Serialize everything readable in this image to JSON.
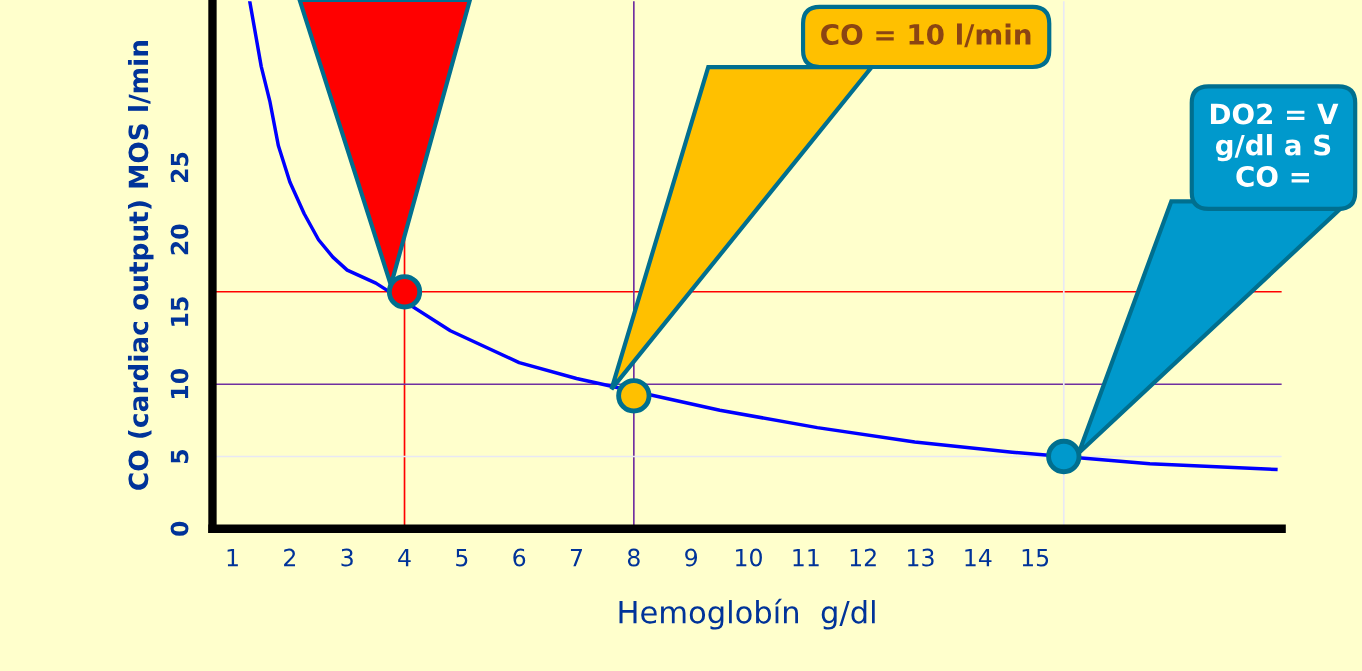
{
  "chart_data": {
    "type": "line",
    "xlabel": "Hemoglobín  g/dl",
    "ylabel": "CO (cardiac output) MOS l/min",
    "xlim": [
      0.65,
      19.3
    ],
    "ylim": [
      0,
      36.5
    ],
    "xticks": [
      1,
      2,
      3,
      4,
      5,
      6,
      7,
      8,
      9,
      10,
      11,
      12,
      13,
      14,
      15
    ],
    "yticks": [
      0,
      5,
      10,
      15,
      20,
      25
    ],
    "grid": false,
    "legend": false,
    "series": [
      {
        "color": "#0000ff",
        "marker": "none",
        "x": [
          1.3,
          1.5,
          1.65,
          1.8,
          2.0,
          2.25,
          2.5,
          2.75,
          3.0,
          3.5,
          4.8,
          6.0,
          7.0,
          9.5,
          11.2,
          12.9,
          14.6,
          17.0,
          19.2
        ],
        "values": [
          36.5,
          32.0,
          29.6,
          26.5,
          24,
          21.8,
          20,
          18.8,
          17.9,
          17.0,
          13.7,
          11.5,
          10.4,
          8.2,
          7.0,
          6.0,
          5.3,
          4.5,
          4.1
        ]
      },
      {
        "type": "scatter",
        "marker": "circle",
        "x": [
          4,
          8,
          15.5
        ],
        "values": [
          16.4,
          9.2,
          5.0
        ],
        "colors": [
          "#ff0000",
          "#ffc000",
          "#0099cc"
        ]
      }
    ],
    "ref_lines": [
      {
        "axis": "y",
        "value": 16.4,
        "color": "#ff0000"
      },
      {
        "axis": "x",
        "value": 4,
        "color": "#ff0000"
      },
      {
        "axis": "y",
        "value": 10,
        "color": "#7030a0"
      },
      {
        "axis": "x",
        "value": 8,
        "color": "#7030a0"
      },
      {
        "axis": "y",
        "value": 5,
        "color": "#e8e8f4"
      },
      {
        "axis": "x",
        "value": 15.5,
        "color": "#e8e8f4"
      }
    ],
    "annotations": [
      "CO = 10 l/min",
      "DO2 = V\ng/dl a S\nCO ="
    ]
  }
}
